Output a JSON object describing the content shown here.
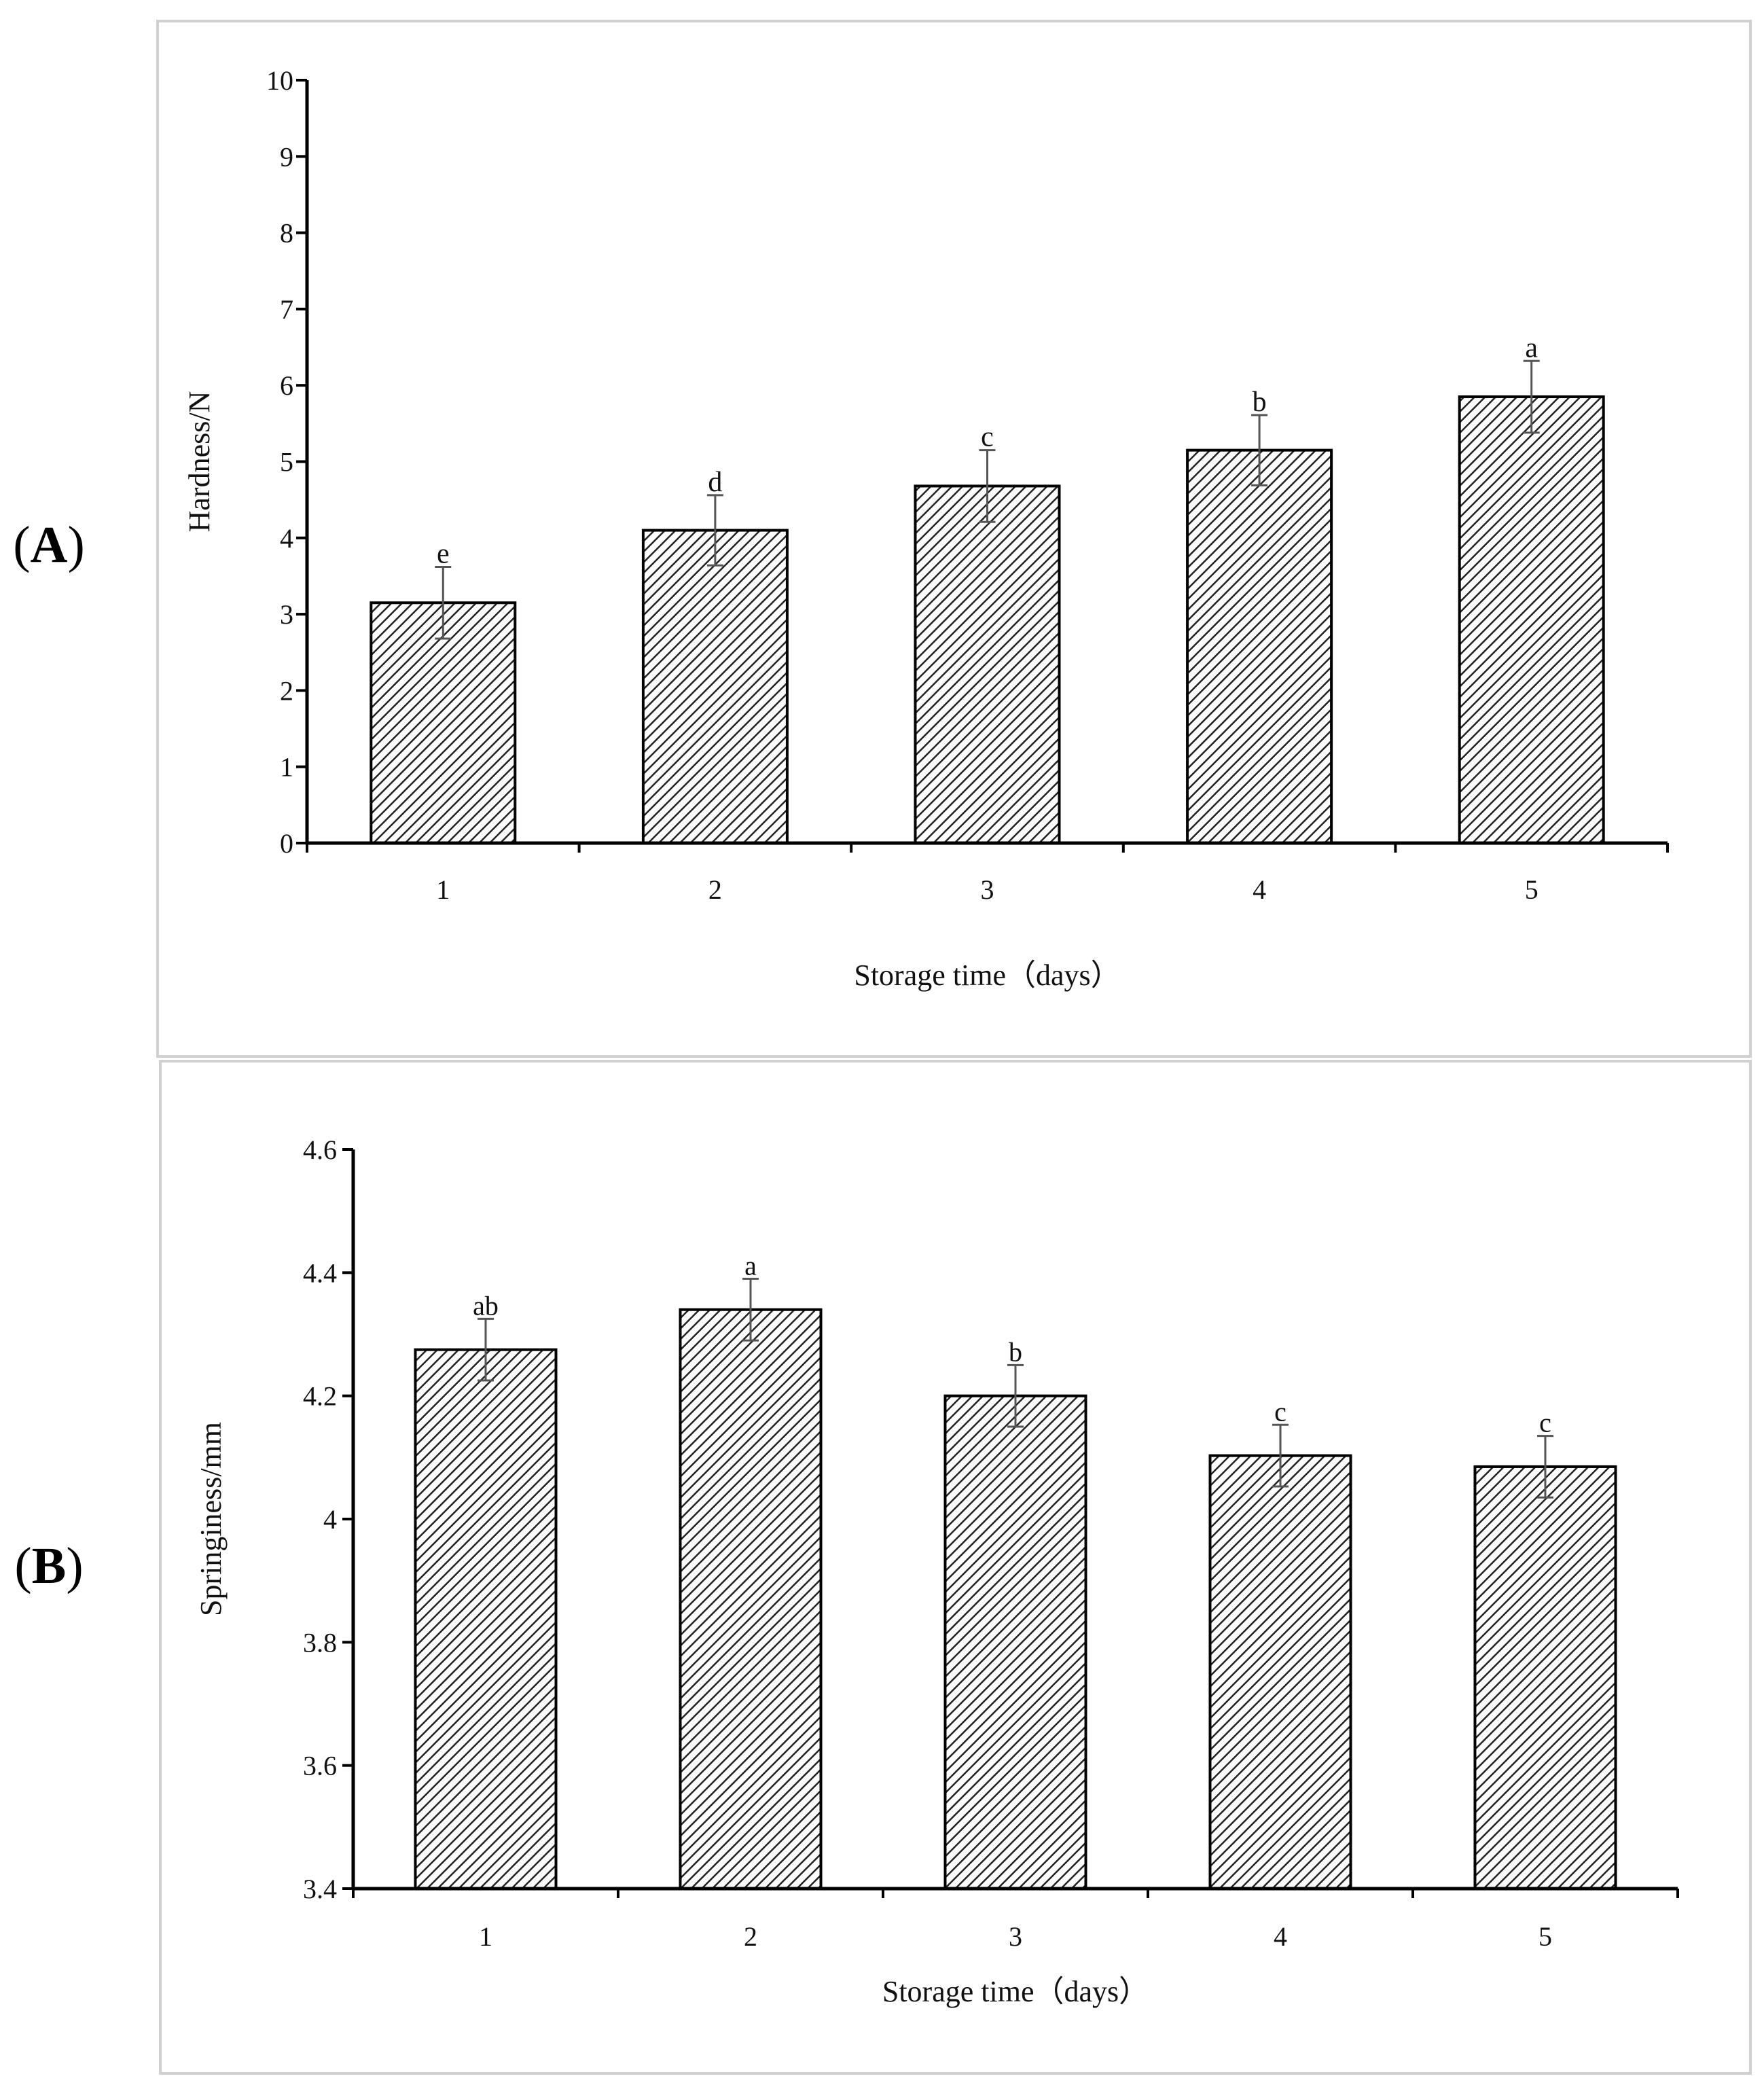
{
  "panels": [
    {
      "label_open": "(",
      "label_letter": "A",
      "label_close": ")"
    },
    {
      "label_open": "(",
      "label_letter": "B",
      "label_close": ")"
    }
  ],
  "chart_data": [
    {
      "type": "bar",
      "title": "",
      "xlabel": "Storage time（days）",
      "ylabel": "Hardness/N",
      "categories": [
        "1",
        "2",
        "3",
        "4",
        "5"
      ],
      "values": [
        3.15,
        4.1,
        4.68,
        5.15,
        5.85
      ],
      "errors": [
        0.47,
        0.46,
        0.47,
        0.46,
        0.47
      ],
      "significance": [
        "e",
        "d",
        "c",
        "b",
        "a"
      ],
      "ylim": [
        0,
        10
      ],
      "yticks": [
        0,
        1,
        2,
        3,
        4,
        5,
        6,
        7,
        8,
        9,
        10
      ],
      "ytick_labels": [
        "0",
        "1",
        "2",
        "3",
        "4",
        "5",
        "6",
        "7",
        "8",
        "9",
        "10"
      ],
      "grid": false,
      "bar_fill": "diagonal-hatch",
      "colors": {
        "bar_edge": "#000000",
        "hatch": "#222222",
        "error_bar": "#555555",
        "frame": "#d0d0d0"
      }
    },
    {
      "type": "bar",
      "title": "",
      "xlabel": "Storage time（days）",
      "ylabel": "Springiness/mm",
      "categories": [
        "1",
        "2",
        "3",
        "4",
        "5"
      ],
      "values": [
        4.275,
        4.34,
        4.2,
        4.103,
        4.085
      ],
      "errors": [
        0.05,
        0.05,
        0.05,
        0.05,
        0.05
      ],
      "significance": [
        "ab",
        "a",
        "b",
        "c",
        "c"
      ],
      "ylim": [
        3.4,
        4.6
      ],
      "yticks": [
        3.4,
        3.6,
        3.8,
        4.0,
        4.2,
        4.4,
        4.6
      ],
      "ytick_labels": [
        "3.4",
        "3.6",
        "3.8",
        "4",
        "4.2",
        "4.4",
        "4.6"
      ],
      "grid": false,
      "bar_fill": "diagonal-hatch",
      "colors": {
        "bar_edge": "#000000",
        "hatch": "#222222",
        "error_bar": "#555555",
        "frame": "#d0d0d0"
      }
    }
  ]
}
